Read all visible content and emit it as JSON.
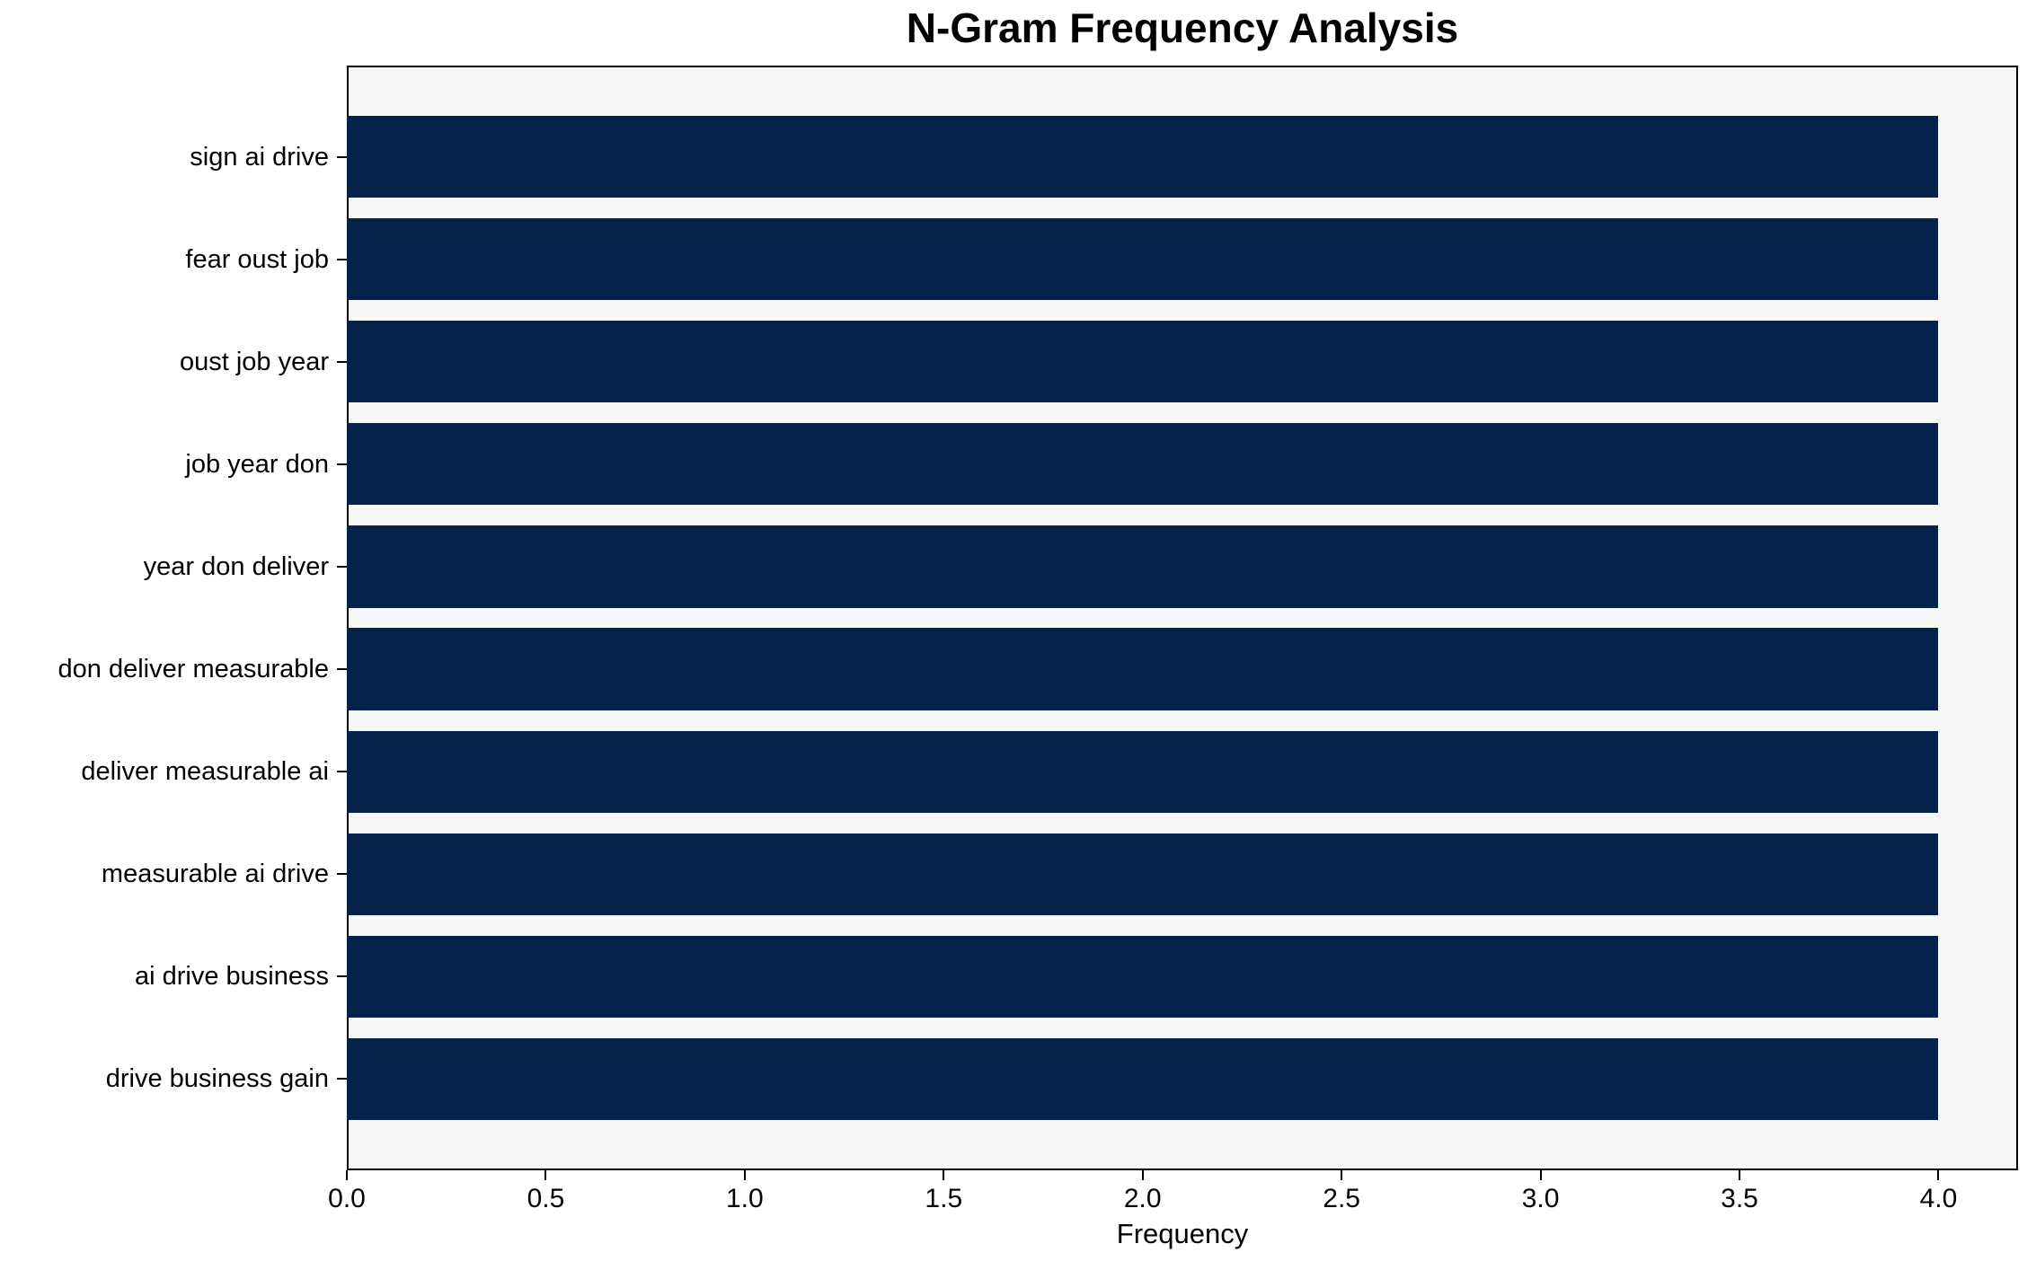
{
  "chart_data": {
    "type": "bar",
    "orientation": "horizontal",
    "title": "N-Gram Frequency Analysis",
    "xlabel": "Frequency",
    "ylabel": "",
    "categories": [
      "sign ai drive",
      "fear oust job",
      "oust job year",
      "job year don",
      "year don deliver",
      "don deliver measurable",
      "deliver measurable ai",
      "measurable ai drive",
      "ai drive business",
      "drive business gain"
    ],
    "values": [
      4,
      4,
      4,
      4,
      4,
      4,
      4,
      4,
      4,
      4
    ],
    "xlim": [
      0,
      4.2
    ],
    "xticks": [
      0.0,
      0.5,
      1.0,
      1.5,
      2.0,
      2.5,
      3.0,
      3.5,
      4.0
    ],
    "xtick_labels": [
      "0.0",
      "0.5",
      "1.0",
      "1.5",
      "2.0",
      "2.5",
      "3.0",
      "3.5",
      "4.0"
    ],
    "grid": false,
    "legend": false,
    "bar_color": "#05224b",
    "plot_bg": "#f7f7f7",
    "figure_bg": "#ffffff",
    "bar_height_fraction": 0.8
  }
}
